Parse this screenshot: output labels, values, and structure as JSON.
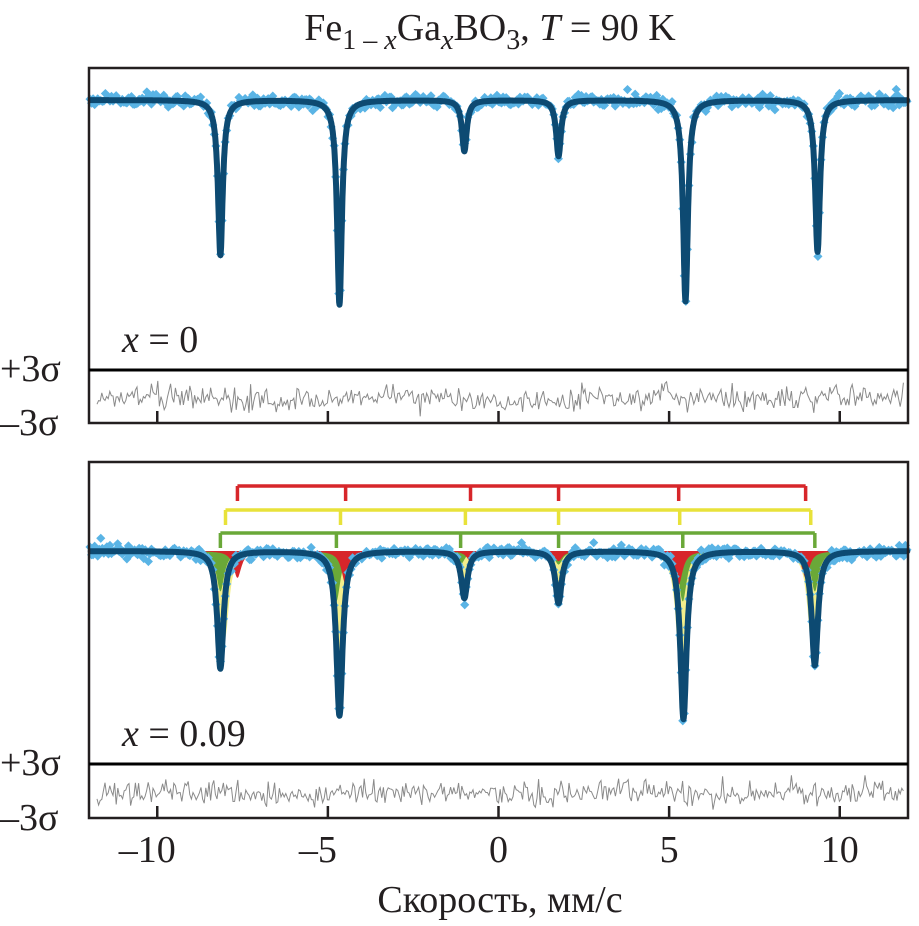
{
  "chart_data": {
    "type": "line",
    "title": {
      "formula_parts": [
        "Fe",
        "1 – ",
        "x",
        "Ga",
        "x",
        "BO",
        "3",
        ", ",
        "T",
        " = 90 K"
      ],
      "text": "Fe1–xGaxBO3, T = 90 K"
    },
    "xlabel": "Скорость, мм/с",
    "ylabel": "",
    "xlim": [
      -12,
      12
    ],
    "xticks": [
      -10,
      -5,
      0,
      5,
      10
    ],
    "xtick_labels": [
      "–10",
      "–5",
      "0",
      "5",
      "10"
    ],
    "residual_labels": {
      "upper": "+3σ",
      "lower": "–3σ"
    },
    "colors": {
      "data_points": "#5ab4e5",
      "fit_line": "#0d4a72",
      "residual": "#8a8a8a",
      "red": "#d7262a",
      "yellow": "#e8e23a",
      "yellow_fill": "#f2ee8c",
      "green": "#6aa838",
      "frame": "#231f20"
    },
    "panels": [
      {
        "label": "x = 0",
        "label_var": "x",
        "label_value": "= 0",
        "linewidth": 0.17,
        "peaks": [
          {
            "position": -8.15,
            "depth": 0.47
          },
          {
            "position": -4.66,
            "depth": 0.62
          },
          {
            "position": -1.0,
            "depth": 0.155
          },
          {
            "position": 1.76,
            "depth": 0.17
          },
          {
            "position": 5.48,
            "depth": 0.61
          },
          {
            "position": 9.35,
            "depth": 0.46
          }
        ],
        "subspectra": []
      },
      {
        "label": "x = 0.09",
        "label_var": "x",
        "label_value": "= 0.09",
        "linewidth": 0.22,
        "peaks": [
          {
            "position": -8.15,
            "depth": 0.35
          },
          {
            "position": -4.66,
            "depth": 0.49
          },
          {
            "position": -1.0,
            "depth": 0.14
          },
          {
            "position": 1.76,
            "depth": 0.155
          },
          {
            "position": 5.42,
            "depth": 0.5
          },
          {
            "position": 9.27,
            "depth": 0.34
          }
        ],
        "subspectra": [
          {
            "name": "red",
            "lines": [
              -7.65,
              -4.48,
              -0.82,
              1.76,
              5.28,
              9.0
            ],
            "depths": [
              0.08,
              0.1,
              0.03,
              0.03,
              0.1,
              0.08
            ]
          },
          {
            "name": "yellow",
            "lines": [
              -8.0,
              -4.63,
              -0.97,
              1.76,
              5.31,
              9.15
            ],
            "depths": [
              0.2,
              0.27,
              0.07,
              0.07,
              0.27,
              0.2
            ]
          },
          {
            "name": "green",
            "lines": [
              -8.15,
              -4.75,
              -1.11,
              1.76,
              5.4,
              9.27
            ],
            "depths": [
              0.12,
              0.15,
              0.04,
              0.04,
              0.15,
              0.12
            ]
          }
        ]
      }
    ]
  }
}
